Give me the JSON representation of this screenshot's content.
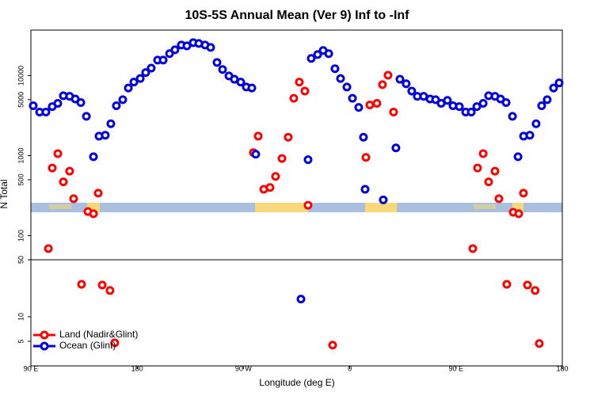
{
  "chart_data": {
    "type": "scatter",
    "title": "10S-5S Annual Mean (Ver 9)   Inf to -Inf",
    "x_label": "Longitude (deg E)",
    "y_label": "N Total",
    "xlim": [
      90,
      540
    ],
    "xticks": [
      {
        "value": 90,
        "label": "90 E"
      },
      {
        "value": 180,
        "label": "180"
      },
      {
        "value": 270,
        "label": "90 W"
      },
      {
        "value": 360,
        "label": "0"
      },
      {
        "value": 450,
        "label": "90 E"
      },
      {
        "value": 540,
        "label": "180"
      }
    ],
    "log_scale": true,
    "panels": [
      {
        "ylim": [
          50,
          37000
        ],
        "yticks": [
          100,
          500,
          1000,
          5000,
          10000
        ]
      },
      {
        "ylim": [
          2.5,
          50
        ],
        "yticks": [
          5,
          10,
          50
        ]
      }
    ],
    "legend": "bottom-left",
    "series": [
      {
        "name": "Land (Nadir&Glint)",
        "color": "#ff0000",
        "x": [
          104.8,
          108.1,
          112.8,
          117.5,
          122.8,
          126.2,
          132.9,
          138.3,
          143,
          147,
          150.4,
          157,
          161,
          278.4,
          282.5,
          287.2,
          292.5,
          297.2,
          302.6,
          307.9,
          312.6,
          317.3,
          322,
          324.7,
          345.5,
          373.7,
          377,
          383,
          387.7,
          392.4,
          397.1,
          464.2,
          468.2,
          473,
          477.6,
          483,
          486.3,
          493,
          498.4,
          503.1,
          507.1,
          510.5,
          517,
          520.5
        ],
        "values": [
          69,
          700,
          1060,
          470,
          640,
          290,
          25,
          200,
          188,
          340,
          24.5,
          21,
          4.8,
          1090,
          1750,
          380,
          400,
          550,
          920,
          1700,
          5200,
          8300,
          6400,
          240,
          4.5,
          950,
          4300,
          4500,
          7700,
          10100,
          3500,
          69,
          700,
          1060,
          470,
          640,
          290,
          25,
          196,
          188,
          340,
          24.5,
          21,
          4.7
        ]
      },
      {
        "name": "Ocean (Glint)",
        "color": "#0000dd",
        "x": [
          92,
          97.4,
          102.7,
          108.1,
          112.8,
          117.5,
          122.8,
          127.6,
          132.3,
          137,
          143,
          147.7,
          153,
          157.7,
          162.4,
          167.8,
          172.5,
          177.2,
          182.6,
          187.2,
          191.9,
          197.3,
          202,
          207.4,
          212,
          217.4,
          222.1,
          227.5,
          232.2,
          237.5,
          242.2,
          247.6,
          252.3,
          257.7,
          262.3,
          267.7,
          272.4,
          277.1,
          280.4,
          318.7,
          324.7,
          327.4,
          332.8,
          337.5,
          342.2,
          347.5,
          352.2,
          357.6,
          362.3,
          367.6,
          371.6,
          373,
          388.4,
          399.1,
          402.5,
          407.8,
          412.5,
          417.2,
          422.6,
          428,
          432.7,
          437.4,
          442.7,
          447.4,
          452.8,
          458.2,
          462.9,
          467.6,
          473,
          477.6,
          483,
          487.7,
          492.4,
          497.8,
          502.5,
          507.2,
          512.5,
          517.8,
          522.5,
          527.2,
          532.6,
          537.3
        ],
        "values": [
          4200,
          3500,
          3500,
          4100,
          4500,
          5600,
          5500,
          5100,
          4600,
          3100,
          970,
          1750,
          1800,
          2500,
          4200,
          5000,
          7000,
          8300,
          9200,
          10900,
          12400,
          15600,
          15600,
          18800,
          21000,
          24100,
          23500,
          25800,
          25200,
          24100,
          22500,
          14600,
          11900,
          9900,
          9000,
          8300,
          7200,
          7000,
          1040,
          16.5,
          890,
          16400,
          18300,
          20600,
          18800,
          12200,
          9200,
          7200,
          5200,
          4000,
          1700,
          380,
          280,
          1250,
          9000,
          7900,
          6400,
          5500,
          5500,
          5100,
          5000,
          4500,
          4900,
          4200,
          4100,
          3500,
          3500,
          4100,
          4500,
          5600,
          5500,
          5100,
          4600,
          3100,
          970,
          1750,
          1800,
          2500,
          4200,
          5000,
          7000,
          8100
        ]
      }
    ]
  }
}
